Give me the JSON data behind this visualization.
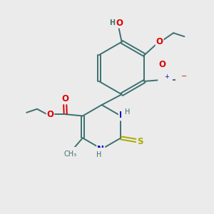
{
  "bg_color": "#ebebeb",
  "bond_color": "#3d7070",
  "bond_width": 1.4,
  "atom_colors": {
    "O": "#dd0000",
    "N": "#0000bb",
    "S": "#aaaa00",
    "C": "#3d7070",
    "H": "#3d7070"
  },
  "font_size_atom": 8.5,
  "font_size_small": 7.0
}
